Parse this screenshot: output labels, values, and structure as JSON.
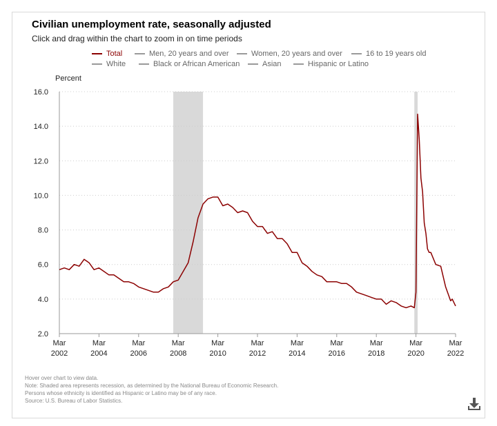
{
  "title": "Civilian unemployment rate, seasonally adjusted",
  "subtitle": "Click and drag within the chart to zoom in on time periods",
  "legend": [
    {
      "label": "Total",
      "active": true
    },
    {
      "label": "Men, 20 years and over",
      "active": false
    },
    {
      "label": "Women, 20 years and over",
      "active": false
    },
    {
      "label": "16 to 19 years old",
      "active": false
    },
    {
      "label": "White",
      "active": false
    },
    {
      "label": "Black or African American",
      "active": false
    },
    {
      "label": "Asian",
      "active": false
    },
    {
      "label": "Hispanic or Latino",
      "active": false
    }
  ],
  "footnotes": [
    "Hover over chart to view data.",
    "Note: Shaded area represents recession, as determined by the National Bureau of Economic Research.",
    "Persons whose ethnicity is identified as Hispanic or Latino may be of any race.",
    "Source: U.S. Bureau of Labor Statistics."
  ],
  "colors": {
    "series": "#8b0000",
    "recession": "#d9d9d9",
    "grid": "#cccccc",
    "axis": "#999999"
  },
  "icons": {
    "download": "download-icon"
  },
  "chart_data": {
    "type": "line",
    "title": "Civilian unemployment rate, seasonally adjusted",
    "ylabel": "Percent",
    "xlabel": "",
    "xlim": [
      "2002-03",
      "2022-03"
    ],
    "ylim": [
      2.0,
      16.0
    ],
    "grid": true,
    "legend_position": "top",
    "y_ticks": [
      "2.0",
      "4.0",
      "6.0",
      "8.0",
      "10.0",
      "12.0",
      "14.0",
      "16.0"
    ],
    "x_ticks": [
      {
        "date": "2002-03",
        "month": "Mar",
        "year": "2002"
      },
      {
        "date": "2004-03",
        "month": "Mar",
        "year": "2004"
      },
      {
        "date": "2006-03",
        "month": "Mar",
        "year": "2006"
      },
      {
        "date": "2008-03",
        "month": "Mar",
        "year": "2008"
      },
      {
        "date": "2010-03",
        "month": "Mar",
        "year": "2010"
      },
      {
        "date": "2012-03",
        "month": "Mar",
        "year": "2012"
      },
      {
        "date": "2014-03",
        "month": "Mar",
        "year": "2014"
      },
      {
        "date": "2016-03",
        "month": "Mar",
        "year": "2016"
      },
      {
        "date": "2018-03",
        "month": "Mar",
        "year": "2018"
      },
      {
        "date": "2020-03",
        "month": "Mar",
        "year": "2020"
      },
      {
        "date": "2022-03",
        "month": "Mar",
        "year": "2022"
      }
    ],
    "recessions": [
      {
        "start": "2007-12",
        "end": "2009-06"
      },
      {
        "start": "2020-02",
        "end": "2020-04"
      }
    ],
    "series": [
      {
        "name": "Total",
        "points": [
          [
            "2002-03",
            5.7
          ],
          [
            "2002-06",
            5.8
          ],
          [
            "2002-09",
            5.7
          ],
          [
            "2002-12",
            6.0
          ],
          [
            "2003-03",
            5.9
          ],
          [
            "2003-06",
            6.3
          ],
          [
            "2003-09",
            6.1
          ],
          [
            "2003-12",
            5.7
          ],
          [
            "2004-03",
            5.8
          ],
          [
            "2004-06",
            5.6
          ],
          [
            "2004-09",
            5.4
          ],
          [
            "2004-12",
            5.4
          ],
          [
            "2005-03",
            5.2
          ],
          [
            "2005-06",
            5.0
          ],
          [
            "2005-09",
            5.0
          ],
          [
            "2005-12",
            4.9
          ],
          [
            "2006-03",
            4.7
          ],
          [
            "2006-06",
            4.6
          ],
          [
            "2006-09",
            4.5
          ],
          [
            "2006-12",
            4.4
          ],
          [
            "2007-03",
            4.4
          ],
          [
            "2007-06",
            4.6
          ],
          [
            "2007-09",
            4.7
          ],
          [
            "2007-12",
            5.0
          ],
          [
            "2008-03",
            5.1
          ],
          [
            "2008-06",
            5.6
          ],
          [
            "2008-09",
            6.1
          ],
          [
            "2008-12",
            7.3
          ],
          [
            "2009-03",
            8.7
          ],
          [
            "2009-06",
            9.5
          ],
          [
            "2009-09",
            9.8
          ],
          [
            "2009-12",
            9.9
          ],
          [
            "2010-03",
            9.9
          ],
          [
            "2010-06",
            9.4
          ],
          [
            "2010-09",
            9.5
          ],
          [
            "2010-12",
            9.3
          ],
          [
            "2011-03",
            9.0
          ],
          [
            "2011-06",
            9.1
          ],
          [
            "2011-09",
            9.0
          ],
          [
            "2011-12",
            8.5
          ],
          [
            "2012-03",
            8.2
          ],
          [
            "2012-06",
            8.2
          ],
          [
            "2012-09",
            7.8
          ],
          [
            "2012-12",
            7.9
          ],
          [
            "2013-03",
            7.5
          ],
          [
            "2013-06",
            7.5
          ],
          [
            "2013-09",
            7.2
          ],
          [
            "2013-12",
            6.7
          ],
          [
            "2014-03",
            6.7
          ],
          [
            "2014-06",
            6.1
          ],
          [
            "2014-09",
            5.9
          ],
          [
            "2014-12",
            5.6
          ],
          [
            "2015-03",
            5.4
          ],
          [
            "2015-06",
            5.3
          ],
          [
            "2015-09",
            5.0
          ],
          [
            "2015-12",
            5.0
          ],
          [
            "2016-03",
            5.0
          ],
          [
            "2016-06",
            4.9
          ],
          [
            "2016-09",
            4.9
          ],
          [
            "2016-12",
            4.7
          ],
          [
            "2017-03",
            4.4
          ],
          [
            "2017-06",
            4.3
          ],
          [
            "2017-09",
            4.2
          ],
          [
            "2017-12",
            4.1
          ],
          [
            "2018-03",
            4.0
          ],
          [
            "2018-06",
            4.0
          ],
          [
            "2018-09",
            3.7
          ],
          [
            "2018-12",
            3.9
          ],
          [
            "2019-03",
            3.8
          ],
          [
            "2019-06",
            3.6
          ],
          [
            "2019-09",
            3.5
          ],
          [
            "2019-12",
            3.6
          ],
          [
            "2020-02",
            3.5
          ],
          [
            "2020-03",
            4.4
          ],
          [
            "2020-04",
            14.7
          ],
          [
            "2020-05",
            13.2
          ],
          [
            "2020-06",
            11.0
          ],
          [
            "2020-07",
            10.2
          ],
          [
            "2020-08",
            8.4
          ],
          [
            "2020-09",
            7.8
          ],
          [
            "2020-10",
            6.9
          ],
          [
            "2020-11",
            6.7
          ],
          [
            "2020-12",
            6.7
          ],
          [
            "2021-03",
            6.0
          ],
          [
            "2021-06",
            5.9
          ],
          [
            "2021-09",
            4.7
          ],
          [
            "2021-12",
            3.9
          ],
          [
            "2022-01",
            4.0
          ],
          [
            "2022-02",
            3.8
          ],
          [
            "2022-03",
            3.6
          ]
        ]
      }
    ]
  }
}
